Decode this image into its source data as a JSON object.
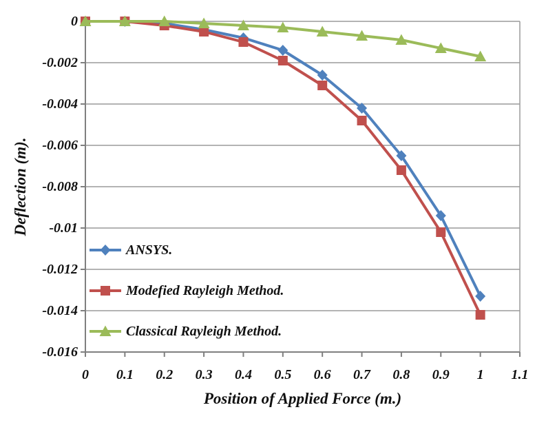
{
  "chart_data": {
    "type": "line",
    "title": "",
    "xlabel": "Position of Applied Force (m.)",
    "ylabel": "Deflection (m).",
    "xlim": [
      0,
      1.1
    ],
    "ylim": [
      -0.016,
      0
    ],
    "grid": "horizontal-major-on",
    "legend_position": "inside-left",
    "x": [
      0,
      0.1,
      0.2,
      0.3,
      0.4,
      0.5,
      0.6,
      0.7,
      0.8,
      0.9,
      1.0
    ],
    "x_tick_labels": [
      "0",
      "0.1",
      "0.2",
      "0.3",
      "0.4",
      "0.5",
      "0.6",
      "0.7",
      "0.8",
      "0.9",
      "1",
      "1.1"
    ],
    "x_ticks": [
      0,
      0.1,
      0.2,
      0.3,
      0.4,
      0.5,
      0.6,
      0.7,
      0.8,
      0.9,
      1.0,
      1.1
    ],
    "y_ticks": [
      0,
      -0.002,
      -0.004,
      -0.006,
      -0.008,
      -0.01,
      -0.012,
      -0.014,
      -0.016
    ],
    "y_tick_labels": [
      "0",
      "-0.002",
      "-0.004",
      "-0.006",
      "-0.008",
      "-0.01",
      "-0.012",
      "-0.014",
      "-0.016"
    ],
    "series": [
      {
        "name": "ANSYS.",
        "marker": "diamond",
        "color": "#4F81BD",
        "values": [
          0,
          0,
          -0.0001,
          -0.0004,
          -0.0008,
          -0.0014,
          -0.0026,
          -0.0042,
          -0.0065,
          -0.0094,
          -0.0133
        ]
      },
      {
        "name": "Modefied Rayleigh Method.",
        "marker": "square",
        "color": "#C0504D",
        "values": [
          0,
          0,
          -0.0002,
          -0.0005,
          -0.001,
          -0.0019,
          -0.0031,
          -0.0048,
          -0.0072,
          -0.0102,
          -0.0142
        ]
      },
      {
        "name": "Classical Rayleigh Method.",
        "marker": "triangle",
        "color": "#9BBB59",
        "values": [
          0,
          0,
          0,
          -0.0001,
          -0.0002,
          -0.0003,
          -0.0005,
          -0.0007,
          -0.0009,
          -0.0013,
          -0.0017
        ]
      }
    ],
    "colors": {
      "axis": "#7f7f7f",
      "grid": "#9a9a9a",
      "text": "#111111",
      "background": "#ffffff"
    }
  }
}
